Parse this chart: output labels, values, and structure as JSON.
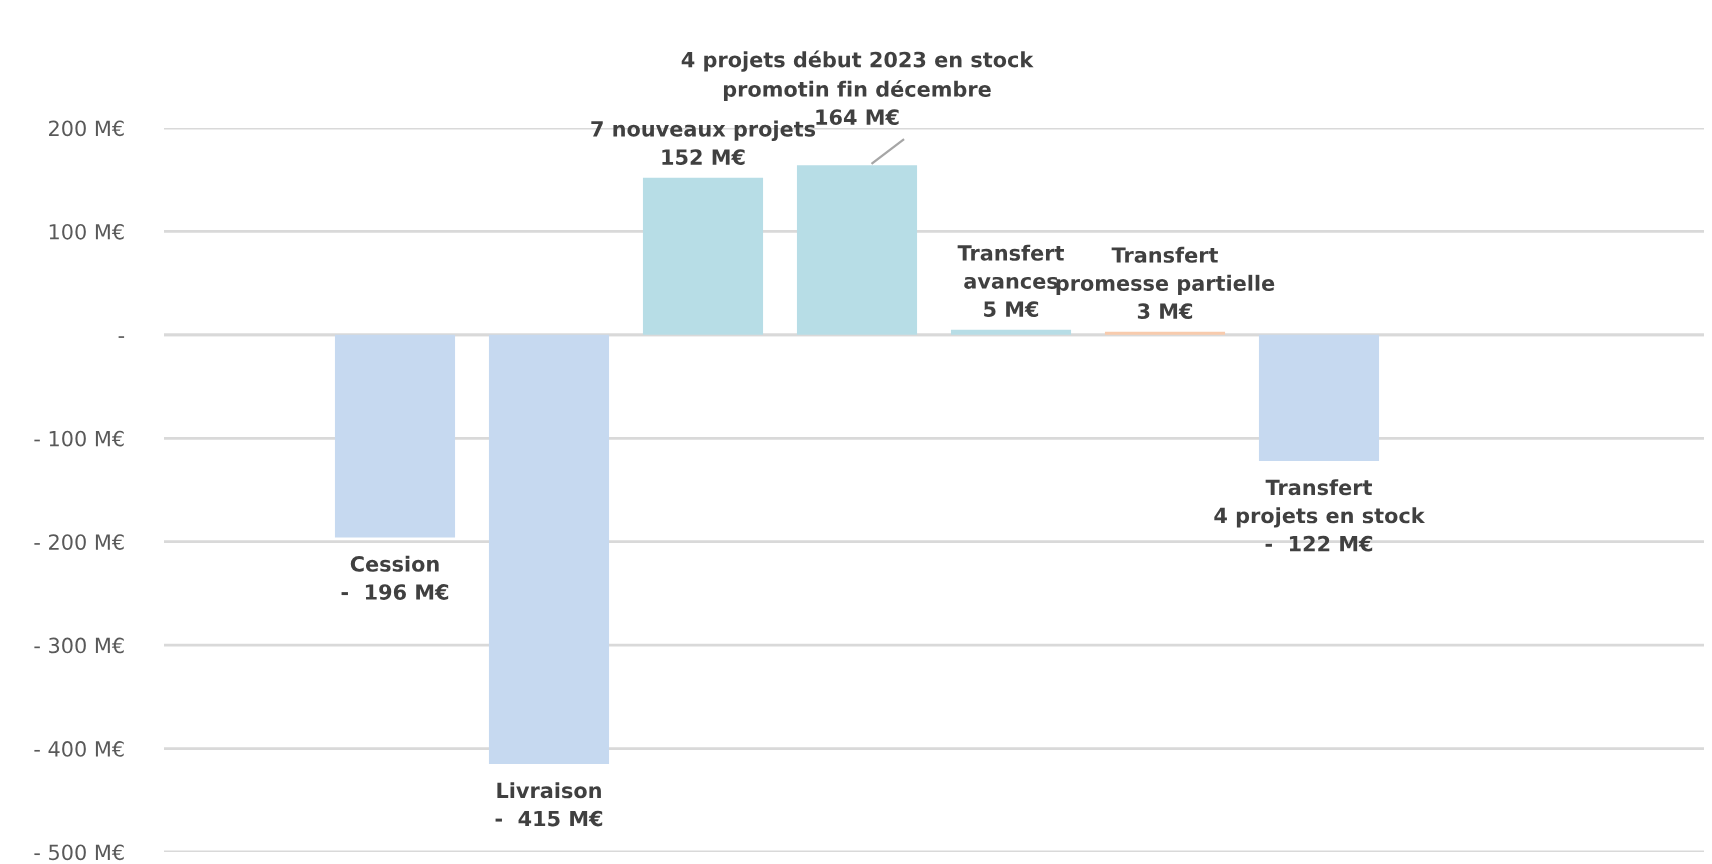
{
  "chart_data": {
    "type": "bar",
    "categories": [
      null,
      null,
      null,
      null,
      null,
      null,
      null,
      null,
      null,
      null
    ],
    "values": [
      null,
      -196,
      -415,
      152,
      164,
      5,
      3,
      -122,
      null,
      null
    ],
    "colors": [
      null,
      "#c6d9f0",
      "#c6d9f0",
      "#b7dde6",
      "#b7dde6",
      "#b7dde6",
      "#f8cbad",
      "#c6d9f0",
      null,
      null
    ],
    "value_labels": [
      null,
      "Cession\n-  196 M€",
      "Livraison\n-  415 M€",
      "7 nouveaux projets\n152 M€",
      "4 projets début 2023 en stock\npromotin fin décembre\n164 M€",
      "Transfert\navances\n5 M€",
      "Transfert\npromesse partielle\n3 M€",
      "Transfert\n4 projets en stock\n-  122 M€",
      null,
      null
    ],
    "ylim": [
      -500,
      200
    ],
    "yticks": [
      {
        "value": -500,
        "label": "- 500 M€"
      },
      {
        "value": -400,
        "label": "- 400 M€"
      },
      {
        "value": -300,
        "label": "- 300 M€"
      },
      {
        "value": -200,
        "label": "- 200 M€"
      },
      {
        "value": -100,
        "label": "- 100 M€"
      },
      {
        "value": 0,
        "label": "-"
      },
      {
        "value": 100,
        "label": "100 M€"
      },
      {
        "value": 200,
        "label": "200 M€"
      }
    ],
    "grid": "y"
  }
}
